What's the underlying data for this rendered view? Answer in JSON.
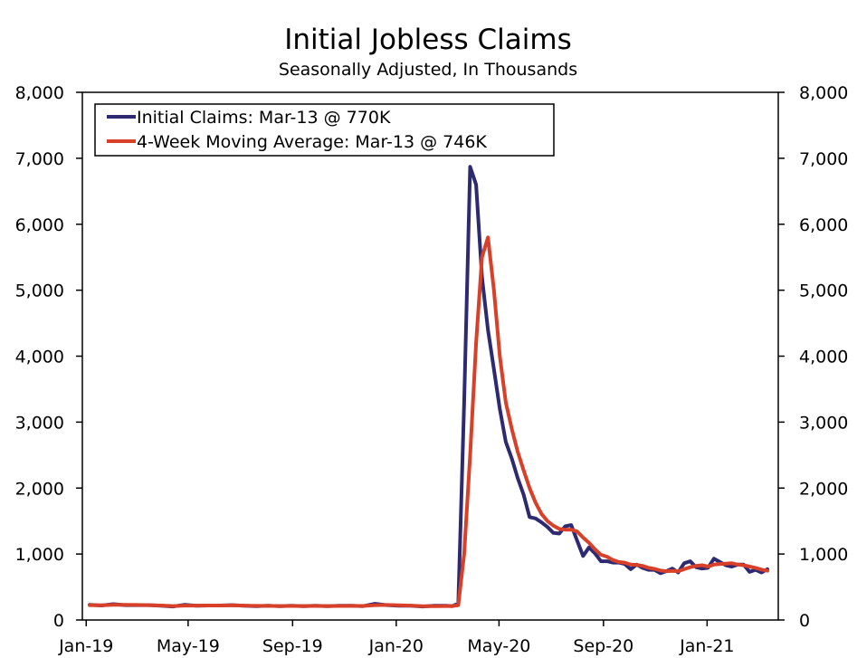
{
  "chart_data": {
    "type": "line",
    "title": "Initial Jobless Claims",
    "subtitle": "Seasonally Adjusted, In Thousands",
    "xlabel": "",
    "ylabel": "",
    "x_start": "2019-01-05",
    "x_end": "2021-03-13",
    "x_ticks": [
      {
        "label": "Jan-19",
        "date": "2019-01-01"
      },
      {
        "label": "May-19",
        "date": "2019-05-01"
      },
      {
        "label": "Sep-19",
        "date": "2019-09-01"
      },
      {
        "label": "Jan-20",
        "date": "2020-01-01"
      },
      {
        "label": "May-20",
        "date": "2020-05-01"
      },
      {
        "label": "Sep-20",
        "date": "2020-09-01"
      },
      {
        "label": "Jan-21",
        "date": "2021-01-01"
      }
    ],
    "ylim": [
      0,
      8000
    ],
    "y_ticks": [
      0,
      1000,
      2000,
      3000,
      4000,
      5000,
      6000,
      7000,
      8000
    ],
    "y_tick_labels": [
      "0",
      "1,000",
      "2,000",
      "3,000",
      "4,000",
      "5,000",
      "6,000",
      "7,000",
      "8,000"
    ],
    "grid": false,
    "legend_position": "top-left",
    "series": [
      {
        "name": "Initial Claims: Mar-13 @ 770K",
        "color": "#2e2a72",
        "points": [
          [
            "2019-01-05",
            230
          ],
          [
            "2019-01-19",
            220
          ],
          [
            "2019-02-02",
            240
          ],
          [
            "2019-02-16",
            225
          ],
          [
            "2019-03-02",
            225
          ],
          [
            "2019-03-16",
            225
          ],
          [
            "2019-03-30",
            215
          ],
          [
            "2019-04-13",
            205
          ],
          [
            "2019-04-27",
            230
          ],
          [
            "2019-05-11",
            215
          ],
          [
            "2019-05-25",
            220
          ],
          [
            "2019-06-08",
            220
          ],
          [
            "2019-06-22",
            225
          ],
          [
            "2019-07-06",
            215
          ],
          [
            "2019-07-20",
            210
          ],
          [
            "2019-08-03",
            215
          ],
          [
            "2019-08-17",
            210
          ],
          [
            "2019-08-31",
            215
          ],
          [
            "2019-09-14",
            210
          ],
          [
            "2019-09-28",
            215
          ],
          [
            "2019-10-12",
            210
          ],
          [
            "2019-10-26",
            215
          ],
          [
            "2019-11-09",
            215
          ],
          [
            "2019-11-23",
            210
          ],
          [
            "2019-12-07",
            245
          ],
          [
            "2019-12-21",
            225
          ],
          [
            "2020-01-04",
            215
          ],
          [
            "2020-01-18",
            215
          ],
          [
            "2020-02-01",
            205
          ],
          [
            "2020-02-15",
            215
          ],
          [
            "2020-02-29",
            215
          ],
          [
            "2020-03-07",
            210
          ],
          [
            "2020-03-14",
            250
          ],
          [
            "2020-03-21",
            3300
          ],
          [
            "2020-03-28",
            6870
          ],
          [
            "2020-04-04",
            6600
          ],
          [
            "2020-04-11",
            5200
          ],
          [
            "2020-04-18",
            4400
          ],
          [
            "2020-04-25",
            3800
          ],
          [
            "2020-05-02",
            3200
          ],
          [
            "2020-05-09",
            2700
          ],
          [
            "2020-05-16",
            2450
          ],
          [
            "2020-05-23",
            2150
          ],
          [
            "2020-05-30",
            1900
          ],
          [
            "2020-06-06",
            1560
          ],
          [
            "2020-06-13",
            1540
          ],
          [
            "2020-06-20",
            1480
          ],
          [
            "2020-06-27",
            1410
          ],
          [
            "2020-07-04",
            1320
          ],
          [
            "2020-07-11",
            1310
          ],
          [
            "2020-07-18",
            1420
          ],
          [
            "2020-07-25",
            1440
          ],
          [
            "2020-08-01",
            1200
          ],
          [
            "2020-08-08",
            970
          ],
          [
            "2020-08-15",
            1100
          ],
          [
            "2020-08-22",
            1010
          ],
          [
            "2020-08-29",
            890
          ],
          [
            "2020-09-05",
            890
          ],
          [
            "2020-09-12",
            870
          ],
          [
            "2020-09-19",
            870
          ],
          [
            "2020-09-26",
            850
          ],
          [
            "2020-10-03",
            770
          ],
          [
            "2020-10-10",
            840
          ],
          [
            "2020-10-17",
            790
          ],
          [
            "2020-10-24",
            760
          ],
          [
            "2020-10-31",
            760
          ],
          [
            "2020-11-07",
            710
          ],
          [
            "2020-11-14",
            740
          ],
          [
            "2020-11-21",
            780
          ],
          [
            "2020-11-28",
            720
          ],
          [
            "2020-12-05",
            860
          ],
          [
            "2020-12-12",
            890
          ],
          [
            "2020-12-19",
            800
          ],
          [
            "2020-12-26",
            780
          ],
          [
            "2021-01-02",
            790
          ],
          [
            "2021-01-09",
            930
          ],
          [
            "2021-01-16",
            880
          ],
          [
            "2021-01-23",
            830
          ],
          [
            "2021-01-30",
            810
          ],
          [
            "2021-02-06",
            840
          ],
          [
            "2021-02-13",
            840
          ],
          [
            "2021-02-20",
            730
          ],
          [
            "2021-02-27",
            760
          ],
          [
            "2021-03-06",
            720
          ],
          [
            "2021-03-13",
            770
          ]
        ]
      },
      {
        "name": "4-Week Moving Average: Mar-13 @ 746K",
        "color": "#d9402a",
        "points": [
          [
            "2019-01-05",
            225
          ],
          [
            "2019-01-19",
            222
          ],
          [
            "2019-02-02",
            230
          ],
          [
            "2019-02-16",
            230
          ],
          [
            "2019-03-02",
            228
          ],
          [
            "2019-03-16",
            225
          ],
          [
            "2019-03-30",
            220
          ],
          [
            "2019-04-13",
            212
          ],
          [
            "2019-04-27",
            218
          ],
          [
            "2019-05-11",
            218
          ],
          [
            "2019-05-25",
            220
          ],
          [
            "2019-06-08",
            220
          ],
          [
            "2019-06-22",
            222
          ],
          [
            "2019-07-06",
            218
          ],
          [
            "2019-07-20",
            214
          ],
          [
            "2019-08-03",
            214
          ],
          [
            "2019-08-17",
            212
          ],
          [
            "2019-08-31",
            213
          ],
          [
            "2019-09-14",
            212
          ],
          [
            "2019-09-28",
            213
          ],
          [
            "2019-10-12",
            212
          ],
          [
            "2019-10-26",
            213
          ],
          [
            "2019-11-09",
            214
          ],
          [
            "2019-11-23",
            213
          ],
          [
            "2019-12-07",
            225
          ],
          [
            "2019-12-21",
            228
          ],
          [
            "2020-01-04",
            222
          ],
          [
            "2020-01-18",
            218
          ],
          [
            "2020-02-01",
            210
          ],
          [
            "2020-02-15",
            210
          ],
          [
            "2020-02-29",
            212
          ],
          [
            "2020-03-07",
            212
          ],
          [
            "2020-03-14",
            225
          ],
          [
            "2020-03-21",
            1000
          ],
          [
            "2020-03-28",
            2500
          ],
          [
            "2020-04-04",
            4200
          ],
          [
            "2020-04-11",
            5500
          ],
          [
            "2020-04-18",
            5800
          ],
          [
            "2020-04-25",
            5000
          ],
          [
            "2020-05-02",
            4000
          ],
          [
            "2020-05-09",
            3300
          ],
          [
            "2020-05-16",
            2900
          ],
          [
            "2020-05-23",
            2550
          ],
          [
            "2020-05-30",
            2270
          ],
          [
            "2020-06-06",
            2000
          ],
          [
            "2020-06-13",
            1780
          ],
          [
            "2020-06-20",
            1610
          ],
          [
            "2020-06-27",
            1500
          ],
          [
            "2020-07-04",
            1430
          ],
          [
            "2020-07-11",
            1380
          ],
          [
            "2020-07-18",
            1370
          ],
          [
            "2020-07-25",
            1370
          ],
          [
            "2020-08-01",
            1340
          ],
          [
            "2020-08-08",
            1250
          ],
          [
            "2020-08-15",
            1170
          ],
          [
            "2020-08-22",
            1070
          ],
          [
            "2020-08-29",
            990
          ],
          [
            "2020-09-05",
            960
          ],
          [
            "2020-09-12",
            910
          ],
          [
            "2020-09-19",
            880
          ],
          [
            "2020-09-26",
            870
          ],
          [
            "2020-10-03",
            840
          ],
          [
            "2020-10-10",
            835
          ],
          [
            "2020-10-17",
            820
          ],
          [
            "2020-10-24",
            790
          ],
          [
            "2020-10-31",
            775
          ],
          [
            "2020-11-07",
            750
          ],
          [
            "2020-11-14",
            740
          ],
          [
            "2020-11-21",
            745
          ],
          [
            "2020-11-28",
            740
          ],
          [
            "2020-12-05",
            770
          ],
          [
            "2020-12-12",
            800
          ],
          [
            "2020-12-19",
            820
          ],
          [
            "2020-12-26",
            830
          ],
          [
            "2021-01-02",
            810
          ],
          [
            "2021-01-09",
            840
          ],
          [
            "2021-01-16",
            850
          ],
          [
            "2021-01-23",
            855
          ],
          [
            "2021-01-30",
            860
          ],
          [
            "2021-02-06",
            840
          ],
          [
            "2021-02-13",
            830
          ],
          [
            "2021-02-20",
            810
          ],
          [
            "2021-02-27",
            790
          ],
          [
            "2021-03-06",
            765
          ],
          [
            "2021-03-13",
            746
          ]
        ]
      }
    ]
  }
}
